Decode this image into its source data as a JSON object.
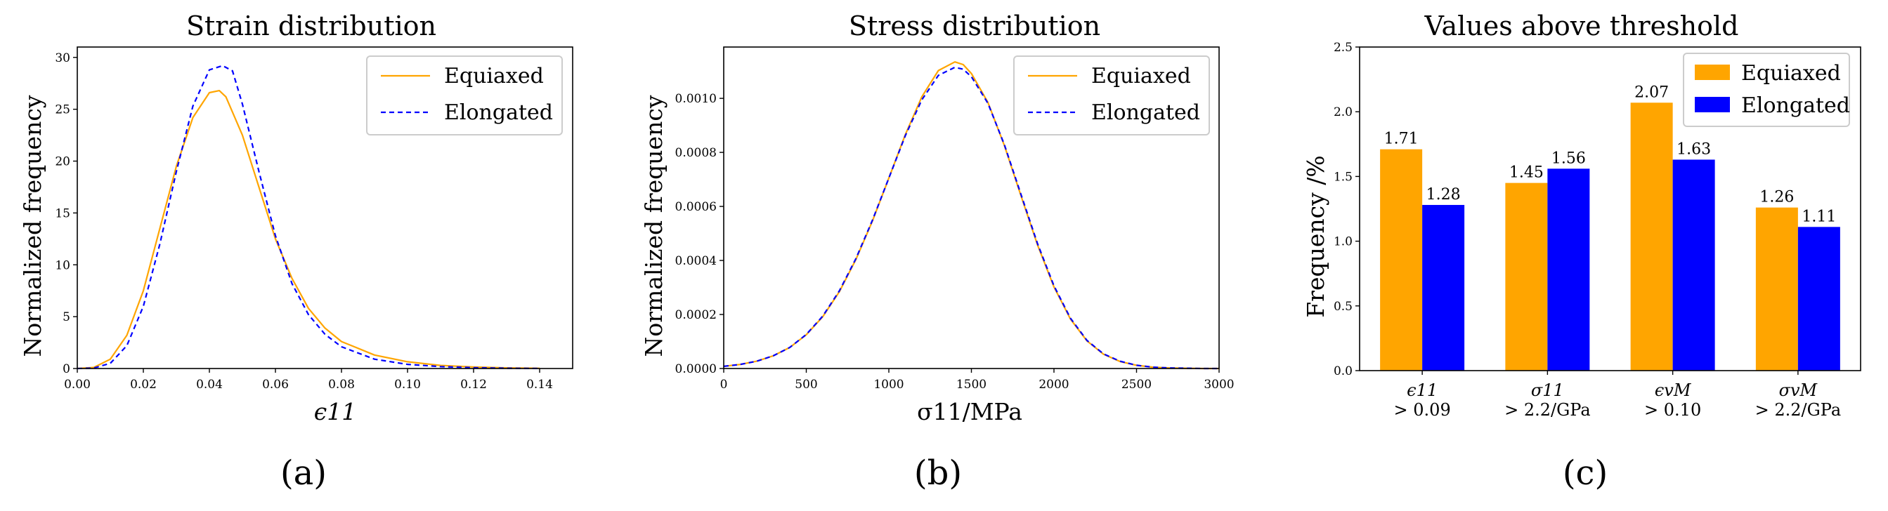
{
  "chart_data": [
    {
      "type": "line",
      "panel_label": "(a)",
      "title": "Strain distribution",
      "xlabel": "ϵ11",
      "ylabel": "Normalized frequency",
      "xlim": [
        0,
        0.15
      ],
      "ylim": [
        0,
        31
      ],
      "xticks": [
        "0.00",
        "0.02",
        "0.04",
        "0.06",
        "0.08",
        "0.10",
        "0.12",
        "0.14"
      ],
      "yticks": [
        "0",
        "5",
        "10",
        "15",
        "20",
        "25",
        "30"
      ],
      "legend": [
        "Equiaxed",
        "Elongated"
      ],
      "legend_position": "top-right",
      "series": [
        {
          "name": "Equiaxed",
          "color": "#ffa500",
          "style": "solid",
          "x": [
            0,
            0.005,
            0.01,
            0.015,
            0.02,
            0.025,
            0.03,
            0.035,
            0.04,
            0.043,
            0.045,
            0.05,
            0.055,
            0.06,
            0.065,
            0.07,
            0.075,
            0.08,
            0.09,
            0.1,
            0.11,
            0.12,
            0.13,
            0.14
          ],
          "y": [
            0,
            0.1,
            0.9,
            3.2,
            7.5,
            13.5,
            19.5,
            24.2,
            26.6,
            26.8,
            26.2,
            22.5,
            17.5,
            12.5,
            8.7,
            5.8,
            3.9,
            2.6,
            1.3,
            0.65,
            0.3,
            0.15,
            0.06,
            0.02
          ]
        },
        {
          "name": "Elongated",
          "color": "#0000ff",
          "style": "dashed",
          "x": [
            0,
            0.005,
            0.01,
            0.015,
            0.02,
            0.025,
            0.03,
            0.035,
            0.04,
            0.044,
            0.047,
            0.05,
            0.055,
            0.06,
            0.065,
            0.07,
            0.075,
            0.08,
            0.09,
            0.1,
            0.11,
            0.12,
            0.13,
            0.14
          ],
          "y": [
            0,
            0.05,
            0.5,
            2.2,
            6,
            12,
            19,
            25.3,
            28.8,
            29.2,
            28.7,
            25.5,
            19,
            12.8,
            8.2,
            5.2,
            3.3,
            2.1,
            0.9,
            0.4,
            0.18,
            0.08,
            0.03,
            0.01
          ]
        }
      ]
    },
    {
      "type": "line",
      "panel_label": "(b)",
      "title": "Stress distribution",
      "xlabel": "σ11/MPa",
      "ylabel": "Normalized frequency",
      "xlim": [
        0,
        3000
      ],
      "ylim": [
        0,
        0.00119
      ],
      "xticks": [
        "0",
        "500",
        "1000",
        "1500",
        "2000",
        "2500",
        "3000"
      ],
      "yticks": [
        "0.0000",
        "0.0002",
        "0.0004",
        "0.0006",
        "0.0008",
        "0.0010"
      ],
      "legend": [
        "Equiaxed",
        "Elongated"
      ],
      "legend_position": "top-right",
      "series": [
        {
          "name": "Equiaxed",
          "color": "#ffa500",
          "style": "solid",
          "x": [
            0,
            100,
            200,
            300,
            400,
            500,
            600,
            700,
            800,
            900,
            1000,
            1100,
            1200,
            1300,
            1400,
            1450,
            1500,
            1600,
            1700,
            1800,
            1900,
            2000,
            2100,
            2200,
            2300,
            2400,
            2500,
            2600,
            2700,
            2800,
            2900,
            3000
          ],
          "y": [
            8e-06,
            1.5e-05,
            2.7e-05,
            4.7e-05,
            7.8e-05,
            0.000125,
            0.000192,
            0.000284,
            0.000403,
            0.000545,
            0.000705,
            0.000866,
            0.001006,
            0.001103,
            0.001135,
            0.001125,
            0.001092,
            0.000985,
            0.000825,
            0.00064,
            0.000458,
            0.000302,
            0.000183,
            0.000102,
            5.3e-05,
            2.6e-05,
            1.2e-05,
            5e-06,
            2e-06,
            1e-06,
            0,
            0
          ]
        },
        {
          "name": "Elongated",
          "color": "#0000ff",
          "style": "dashed",
          "x": [
            0,
            100,
            200,
            300,
            400,
            500,
            600,
            700,
            800,
            900,
            1000,
            1100,
            1200,
            1300,
            1400,
            1450,
            1500,
            1600,
            1700,
            1800,
            1900,
            2000,
            2100,
            2200,
            2300,
            2400,
            2500,
            2600,
            2700,
            2800,
            2900,
            3000
          ],
          "y": [
            8e-06,
            1.5e-05,
            2.7e-05,
            4.7e-05,
            7.8e-05,
            0.000126,
            0.000194,
            0.000287,
            0.000406,
            0.000548,
            0.000705,
            0.000862,
            0.000995,
            0.001085,
            0.001115,
            0.001108,
            0.00108,
            0.000982,
            0.000828,
            0.000645,
            0.000463,
            0.000306,
            0.000186,
            0.000104,
            5.4e-05,
            2.7e-05,
            1.2e-05,
            5e-06,
            2e-06,
            1e-06,
            0,
            0
          ]
        }
      ]
    },
    {
      "type": "bar",
      "panel_label": "(c)",
      "title": "Values above threshold",
      "ylabel": "Frequency /%",
      "ylim": [
        0,
        2.5
      ],
      "yticks": [
        "0.0",
        "0.5",
        "1.0",
        "1.5",
        "2.0",
        "2.5"
      ],
      "categories": [
        {
          "top": "ϵ11",
          "bottom": "> 0.09"
        },
        {
          "top": "σ11",
          "bottom": "> 2.2/GPa"
        },
        {
          "top": "ϵvM",
          "bottom": "> 0.10"
        },
        {
          "top": "σvM",
          "bottom": "> 2.2/GPa"
        }
      ],
      "legend": [
        "Equiaxed",
        "Elongated"
      ],
      "legend_position": "top-right",
      "series": [
        {
          "name": "Equiaxed",
          "color": "#ffa500",
          "values": [
            1.71,
            1.45,
            2.07,
            1.26
          ]
        },
        {
          "name": "Elongated",
          "color": "#0000ff",
          "values": [
            1.28,
            1.56,
            1.63,
            1.11
          ]
        }
      ],
      "value_labels": [
        [
          "1.71",
          "1.45",
          "2.07",
          "1.26"
        ],
        [
          "1.28",
          "1.56",
          "1.63",
          "1.11"
        ]
      ]
    }
  ]
}
